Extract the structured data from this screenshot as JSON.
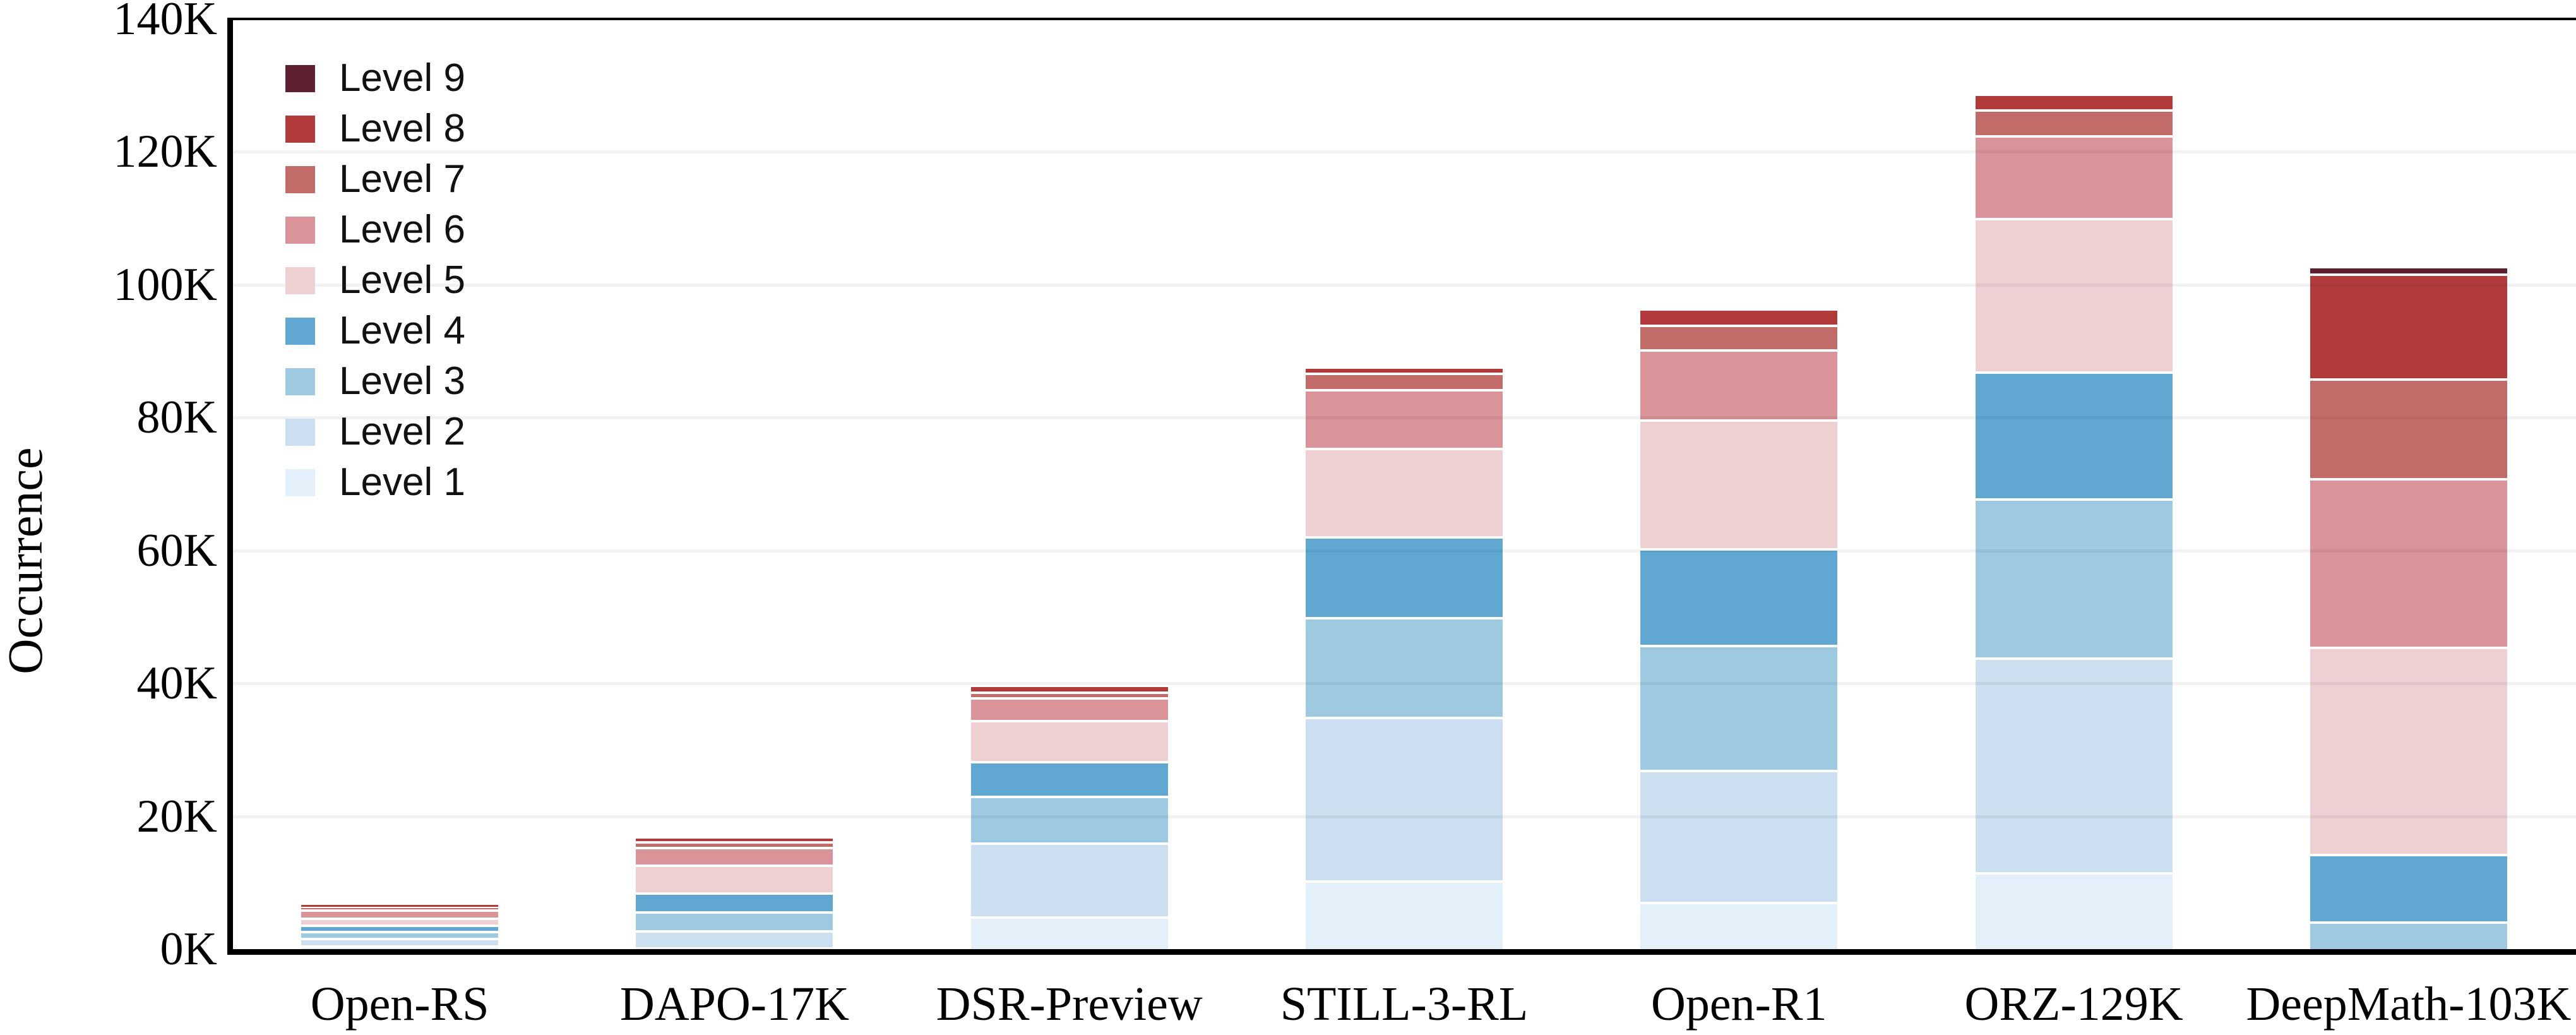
{
  "chart_data": {
    "type": "bar",
    "stacked": true,
    "title": "",
    "xlabel": "",
    "ylabel": "Occurrence",
    "ylim": [
      0,
      140
    ],
    "grid": "horizontal",
    "legend_position": "top-left",
    "legend_order": "top-is-level-9",
    "y_ticks": [
      "0K",
      "20K",
      "40K",
      "60K",
      "80K",
      "100K",
      "120K",
      "140K"
    ],
    "y_tick_values": [
      0,
      20,
      40,
      60,
      80,
      100,
      120,
      140
    ],
    "categories": [
      "Open-RS",
      "DAPO-17K",
      "DSR-Preview",
      "STILL-3-RL",
      "Open-R1",
      "ORZ-129K",
      "DeepMath-103K"
    ],
    "unit": "K",
    "totals_k": [
      7.0,
      17.0,
      39.8,
      87.7,
      96.5,
      128.8,
      102.8
    ],
    "series": [
      {
        "name": "Level 1",
        "color": "#e3eff9",
        "values": [
          0.6,
          0.3,
          4.9,
          10.4,
          7.1,
          11.6,
          0
        ]
      },
      {
        "name": "Level 2",
        "color": "#cbdff0",
        "values": [
          1.1,
          2.6,
          11.2,
          24.6,
          19.9,
          32.3,
          0
        ]
      },
      {
        "name": "Level 3",
        "color": "#9ecae1",
        "values": [
          1.1,
          2.8,
          7.0,
          15.0,
          18.8,
          24.0,
          4.2
        ]
      },
      {
        "name": "Level 4",
        "color": "#60a8d2",
        "values": [
          0.9,
          2.9,
          5.2,
          12.2,
          14.6,
          19.1,
          10.2
        ]
      },
      {
        "name": "Level 5",
        "color": "#eed0d3",
        "values": [
          1.1,
          4.1,
          6.2,
          13.3,
          19.3,
          23.1,
          31.1
        ]
      },
      {
        "name": "Level 6",
        "color": "#da9399",
        "values": [
          1.2,
          2.7,
          3.4,
          8.8,
          10.6,
          12.4,
          25.4
        ]
      },
      {
        "name": "Level 7",
        "color": "#c26c6a",
        "values": [
          0.4,
          0.9,
          0.9,
          2.5,
          3.7,
          3.9,
          15.0
        ]
      },
      {
        "name": "Level 8",
        "color": "#b13a3b",
        "values": [
          0.6,
          0.7,
          1.0,
          0.9,
          2.5,
          2.4,
          15.8
        ]
      },
      {
        "name": "Level 9",
        "color": "#5e2031",
        "values": [
          0,
          0,
          0,
          0,
          0,
          0,
          1.1
        ]
      }
    ]
  }
}
